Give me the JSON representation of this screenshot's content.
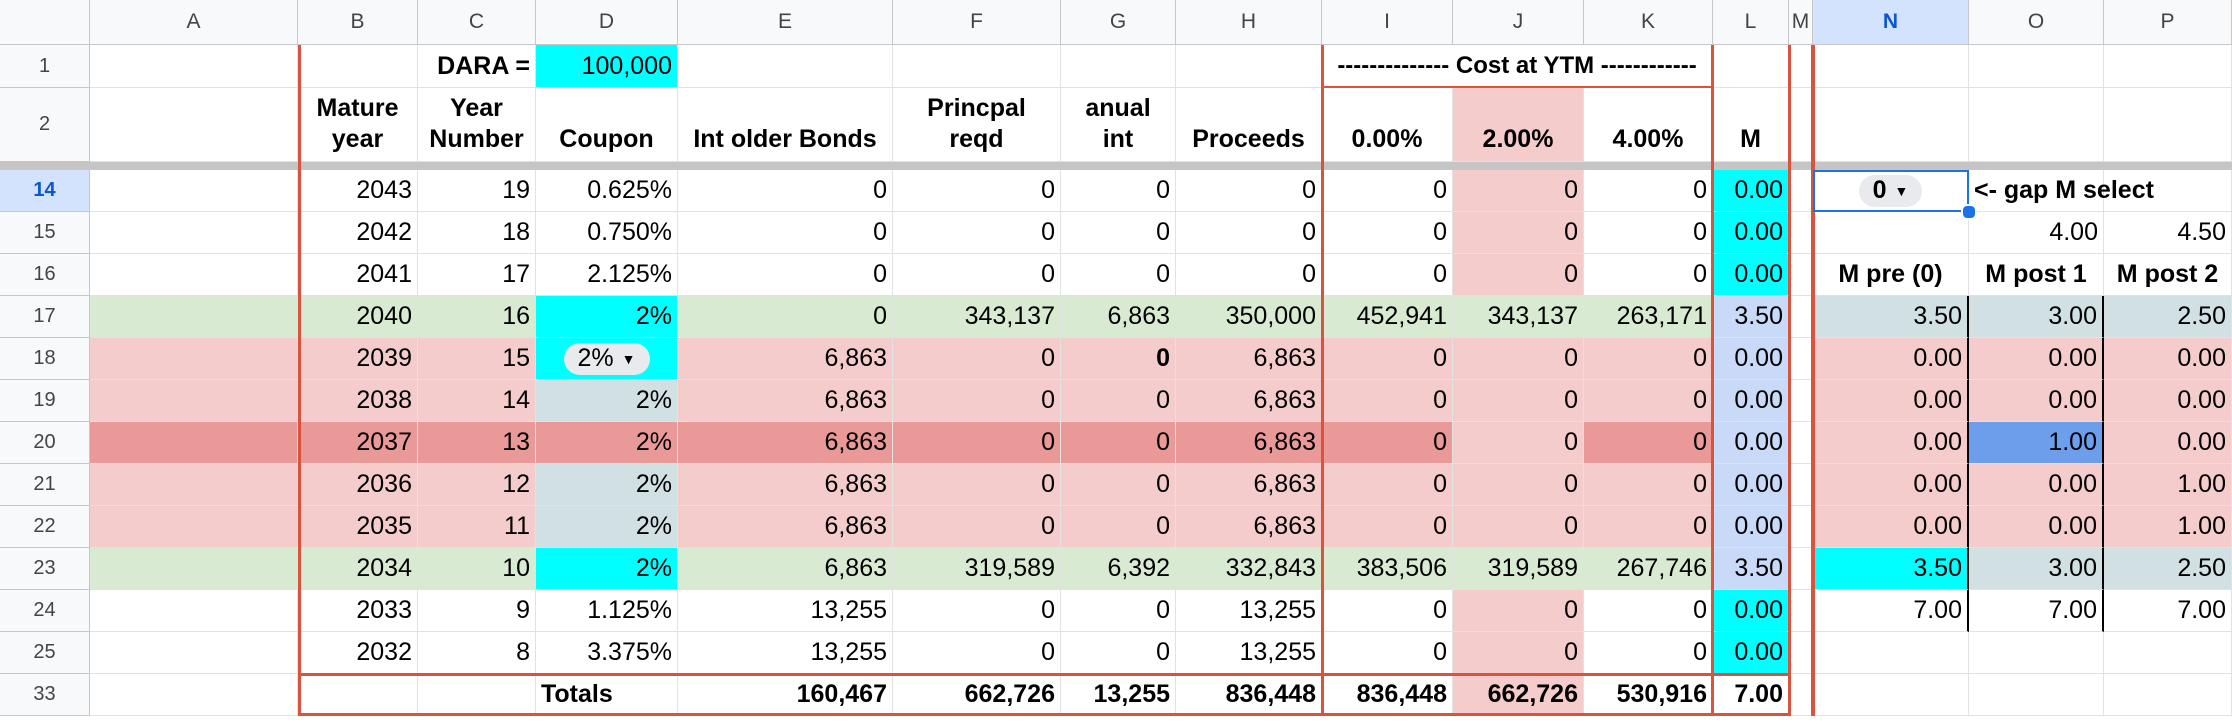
{
  "colors": {
    "cyan": "#00ffff",
    "pink": "#f4cccc",
    "dark_pink": "#ea9999",
    "green": "#d9ead3",
    "lavender": "#c9daf8",
    "bluegray": "#d0e0e3",
    "blue": "#6d9eeb",
    "border_red": "#d9533f"
  },
  "column_headers": [
    "A",
    "B",
    "C",
    "D",
    "E",
    "F",
    "G",
    "H",
    "I",
    "J",
    "K",
    "L",
    "M",
    "N",
    "O",
    "P"
  ],
  "row_headers": [
    "1",
    "2",
    "14",
    "15",
    "16",
    "17",
    "18",
    "19",
    "20",
    "21",
    "22",
    "23",
    "24",
    "25",
    "33"
  ],
  "row1": {
    "dara_label": "DARA =",
    "dara_value": "100,000",
    "cost_at_ytm": "-------------- Cost at YTM ------------"
  },
  "row2": {
    "b": [
      "Mature",
      "year"
    ],
    "c": [
      "Year",
      "Number"
    ],
    "d": [
      "Coupon"
    ],
    "e": [
      "Int older Bonds"
    ],
    "f": [
      "Princpal",
      "reqd"
    ],
    "g": [
      "anual",
      "int"
    ],
    "h": [
      "Proceeds"
    ],
    "i": [
      "0.00%"
    ],
    "j": [
      "2.00%"
    ],
    "k": [
      "4.00%"
    ],
    "l": [
      "M"
    ]
  },
  "body_rows": [
    {
      "b": "2043",
      "c": "19",
      "d": "0.625%",
      "e": "0",
      "f": "0",
      "g": "0",
      "h": "0",
      "i": "0",
      "j": "0",
      "k": "0",
      "l": "0.00",
      "n": "0",
      "o": "<- gap M select",
      "p": ""
    },
    {
      "b": "2042",
      "c": "18",
      "d": "0.750%",
      "e": "0",
      "f": "0",
      "g": "0",
      "h": "0",
      "i": "0",
      "j": "0",
      "k": "0",
      "l": "0.00",
      "n": "",
      "o": "4.00",
      "p": "4.50"
    },
    {
      "b": "2041",
      "c": "17",
      "d": "2.125%",
      "e": "0",
      "f": "0",
      "g": "0",
      "h": "0",
      "i": "0",
      "j": "0",
      "k": "0",
      "l": "0.00",
      "n": "M pre (0)",
      "o": "M post 1",
      "p": "M post 2"
    },
    {
      "b": "2040",
      "c": "16",
      "d": "2%",
      "e": "0",
      "f": "343,137",
      "g": "6,863",
      "h": "350,000",
      "i": "452,941",
      "j": "343,137",
      "k": "263,171",
      "l": "3.50",
      "n": "3.50",
      "o": "3.00",
      "p": "2.50"
    },
    {
      "b": "2039",
      "c": "15",
      "d": "2%",
      "e": "6,863",
      "f": "0",
      "g": "0",
      "h": "6,863",
      "i": "0",
      "j": "0",
      "k": "0",
      "l": "0.00",
      "n": "0.00",
      "o": "0.00",
      "p": "0.00"
    },
    {
      "b": "2038",
      "c": "14",
      "d": "2%",
      "e": "6,863",
      "f": "0",
      "g": "0",
      "h": "6,863",
      "i": "0",
      "j": "0",
      "k": "0",
      "l": "0.00",
      "n": "0.00",
      "o": "0.00",
      "p": "0.00"
    },
    {
      "b": "2037",
      "c": "13",
      "d": "2%",
      "e": "6,863",
      "f": "0",
      "g": "0",
      "h": "6,863",
      "i": "0",
      "j": "0",
      "k": "0",
      "l": "0.00",
      "n": "0.00",
      "o": "1.00",
      "p": "0.00"
    },
    {
      "b": "2036",
      "c": "12",
      "d": "2%",
      "e": "6,863",
      "f": "0",
      "g": "0",
      "h": "6,863",
      "i": "0",
      "j": "0",
      "k": "0",
      "l": "0.00",
      "n": "0.00",
      "o": "0.00",
      "p": "1.00"
    },
    {
      "b": "2035",
      "c": "11",
      "d": "2%",
      "e": "6,863",
      "f": "0",
      "g": "0",
      "h": "6,863",
      "i": "0",
      "j": "0",
      "k": "0",
      "l": "0.00",
      "n": "0.00",
      "o": "0.00",
      "p": "1.00"
    },
    {
      "b": "2034",
      "c": "10",
      "d": "2%",
      "e": "6,863",
      "f": "319,589",
      "g": "6,392",
      "h": "332,843",
      "i": "383,506",
      "j": "319,589",
      "k": "267,746",
      "l": "3.50",
      "n": "3.50",
      "o": "3.00",
      "p": "2.50"
    },
    {
      "b": "2033",
      "c": "9",
      "d": "1.125%",
      "e": "13,255",
      "f": "0",
      "g": "0",
      "h": "13,255",
      "i": "0",
      "j": "0",
      "k": "0",
      "l": "0.00",
      "n": "7.00",
      "o": "7.00",
      "p": "7.00"
    },
    {
      "b": "2032",
      "c": "8",
      "d": "3.375%",
      "e": "13,255",
      "f": "0",
      "g": "0",
      "h": "13,255",
      "i": "0",
      "j": "0",
      "k": "0",
      "l": "0.00",
      "n": "",
      "o": "",
      "p": ""
    },
    {
      "b": "",
      "c": "",
      "d": "Totals",
      "e": "160,467",
      "f": "662,726",
      "g": "13,255",
      "h": "836,448",
      "i": "836,448",
      "j": "662,726",
      "k": "530,916",
      "l": "7.00",
      "n": "",
      "o": "",
      "p": ""
    }
  ]
}
